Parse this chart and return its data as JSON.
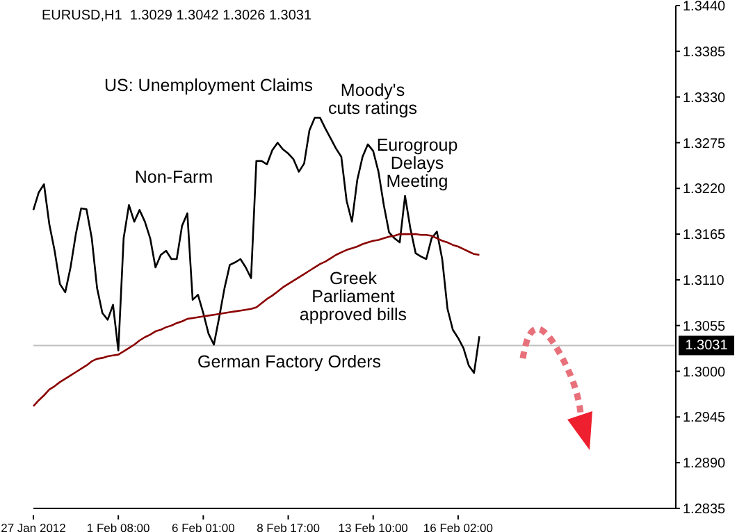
{
  "chart_data": {
    "type": "line",
    "title": "EURUSD,H1  1.3029 1.3042 1.3026 1.3031",
    "categories": [
      "27 Jan 2012",
      null,
      null,
      null,
      null,
      null,
      null,
      null,
      null,
      null,
      null,
      null,
      null,
      null,
      null,
      null,
      "1 Feb 08:00",
      null,
      null,
      null,
      null,
      null,
      null,
      null,
      null,
      null,
      null,
      null,
      null,
      null,
      null,
      null,
      "6 Feb 01:00",
      null,
      null,
      null,
      null,
      null,
      null,
      null,
      null,
      null,
      null,
      null,
      null,
      null,
      null,
      null,
      "8 Feb 17:00",
      null,
      null,
      null,
      null,
      null,
      null,
      null,
      null,
      null,
      null,
      null,
      null,
      null,
      null,
      null,
      "13 Feb 10:00",
      null,
      null,
      null,
      null,
      null,
      null,
      null,
      null,
      null,
      null,
      null,
      null,
      null,
      null,
      null,
      "16 Feb 02:00",
      null,
      null,
      null,
      null,
      null,
      null,
      null,
      null,
      null,
      null,
      null,
      null,
      null,
      null,
      null,
      null,
      null,
      null,
      null,
      null,
      null,
      null,
      null,
      null,
      null,
      null,
      null,
      null,
      null,
      null,
      null,
      null,
      null,
      null,
      null,
      null,
      null,
      null,
      null,
      null,
      null
    ],
    "series": [
      {
        "color": "#000000",
        "values": [
          1.3194,
          1.3215,
          1.3225,
          1.3177,
          1.3145,
          1.3105,
          1.3095,
          1.3125,
          1.3165,
          1.3196,
          1.3195,
          1.316,
          1.31,
          1.307,
          1.3062,
          1.308,
          1.3025,
          1.316,
          1.32,
          1.318,
          1.3194,
          1.318,
          1.316,
          1.3125,
          1.314,
          1.3145,
          1.3135,
          1.3135,
          1.3175,
          1.319,
          1.3086,
          1.3092,
          1.307,
          1.3045,
          1.3032,
          1.3065,
          1.31,
          1.3128,
          1.3131,
          1.3135,
          1.3125,
          1.3112,
          1.3253,
          1.3253,
          1.3249,
          1.3266,
          1.3275,
          1.3267,
          1.3262,
          1.3255,
          1.324,
          1.325,
          1.329,
          1.3305,
          1.3305,
          1.3292,
          1.328,
          1.3268,
          1.3258,
          1.3205,
          1.318,
          1.323,
          1.3258,
          1.3273,
          1.3265,
          1.324,
          1.32,
          1.3167,
          1.316,
          1.3155,
          1.3211,
          1.3172,
          1.3142,
          1.3138,
          1.3135,
          1.316,
          1.3168,
          1.3135,
          1.3075,
          1.305,
          1.304,
          1.3028,
          1.3007,
          1.2998,
          1.3042,
          null,
          null,
          null,
          null,
          null,
          null,
          null,
          null,
          null,
          null,
          null,
          null,
          null,
          null,
          null,
          null,
          null,
          null,
          null,
          null,
          null,
          null,
          null,
          null,
          null,
          null,
          null,
          null,
          null,
          null,
          null,
          null,
          null,
          null,
          null,
          null,
          null
        ]
      },
      {
        "color": "#8b0000",
        "values": [
          1.2958,
          1.2965,
          1.2971,
          1.2978,
          1.2982,
          1.2987,
          1.2991,
          1.2995,
          1.2999,
          1.3003,
          1.3007,
          1.3012,
          1.3015,
          1.3016,
          1.3018,
          1.3019,
          1.302,
          1.3024,
          1.3028,
          1.3032,
          1.3037,
          1.3041,
          1.3044,
          1.3048,
          1.305,
          1.3053,
          1.3055,
          1.3058,
          1.306,
          1.3063,
          1.3064,
          1.3065,
          1.3066,
          1.3067,
          1.3068,
          1.3069,
          1.307,
          1.3071,
          1.3072,
          1.3073,
          1.3074,
          1.3075,
          1.3077,
          1.3082,
          1.3087,
          1.3091,
          1.3096,
          1.3101,
          1.3105,
          1.3109,
          1.3113,
          1.3117,
          1.3121,
          1.3125,
          1.3129,
          1.3132,
          1.3136,
          1.314,
          1.3143,
          1.3146,
          1.3148,
          1.315,
          1.3153,
          1.3155,
          1.3157,
          1.3158,
          1.316,
          1.3162,
          1.3163,
          1.3165,
          1.3165,
          1.3165,
          1.3165,
          1.3164,
          1.3164,
          1.3163,
          1.316,
          1.3157,
          1.3155,
          1.3152,
          1.315,
          1.3147,
          1.3144,
          1.3141,
          1.314,
          null,
          null,
          null,
          null,
          null,
          null,
          null,
          null,
          null,
          null,
          null,
          null,
          null,
          null,
          null,
          null,
          null,
          null,
          null,
          null,
          null,
          null,
          null,
          null,
          null,
          null,
          null,
          null,
          null,
          null,
          null,
          null,
          null,
          null,
          null,
          null,
          null
        ]
      }
    ],
    "ylim": [
      1.2835,
      1.344
    ],
    "yticks": [
      1.2835,
      {
        "value": 1.289,
        "label": "1.2890"
      },
      1.2945,
      {
        "value": 1.3,
        "label": "1.3000"
      },
      1.3055,
      {
        "value": 1.311,
        "label": "1.3110"
      },
      1.3165,
      {
        "value": 1.322,
        "label": "1.3220"
      },
      1.3275,
      {
        "value": 1.333,
        "label": "1.3330"
      },
      1.3385,
      {
        "value": 1.344,
        "label": "1.3440"
      }
    ],
    "ref_lines": [
      {
        "axis": "y",
        "value": 1.3031,
        "label": "1.3031",
        "color": "#c0c0c0"
      }
    ],
    "annotations": [
      "US: Unemployment Claims",
      "Moody's\ncuts ratings",
      "Non-Farm",
      "Eurogroup\nDelays\nMeeting",
      "Greek\nParliament\napproved bills",
      "German Factory Orders"
    ],
    "grid": false,
    "legend": false,
    "marker": "none",
    "line_style": "solid"
  }
}
